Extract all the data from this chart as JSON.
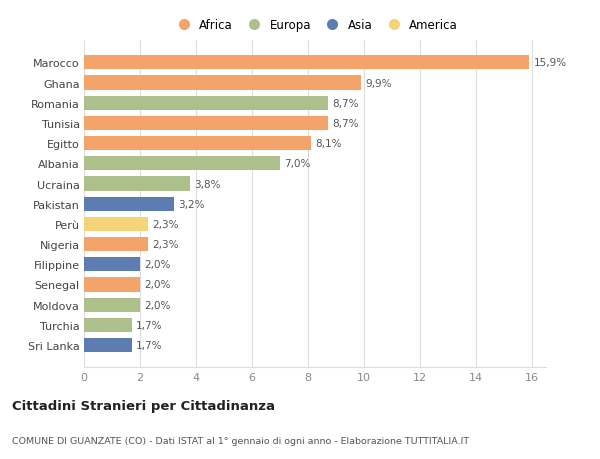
{
  "countries": [
    "Marocco",
    "Ghana",
    "Romania",
    "Tunisia",
    "Egitto",
    "Albania",
    "Ucraina",
    "Pakistan",
    "Perù",
    "Nigeria",
    "Filippine",
    "Senegal",
    "Moldova",
    "Turchia",
    "Sri Lanka"
  ],
  "values": [
    15.9,
    9.9,
    8.7,
    8.7,
    8.1,
    7.0,
    3.8,
    3.2,
    2.3,
    2.3,
    2.0,
    2.0,
    2.0,
    1.7,
    1.7
  ],
  "labels": [
    "15,9%",
    "9,9%",
    "8,7%",
    "8,7%",
    "8,1%",
    "7,0%",
    "3,8%",
    "3,2%",
    "2,3%",
    "2,3%",
    "2,0%",
    "2,0%",
    "2,0%",
    "1,7%",
    "1,7%"
  ],
  "continents": [
    "Africa",
    "Africa",
    "Europa",
    "Africa",
    "Africa",
    "Europa",
    "Europa",
    "Asia",
    "America",
    "Africa",
    "Asia",
    "Africa",
    "Europa",
    "Europa",
    "Asia"
  ],
  "colors": {
    "Africa": "#F4A46A",
    "Europa": "#ADBF8A",
    "Asia": "#5B7DB1",
    "America": "#F5D478"
  },
  "legend_order": [
    "Africa",
    "Europa",
    "Asia",
    "America"
  ],
  "xlim": [
    0,
    16.5
  ],
  "xticks": [
    0,
    2,
    4,
    6,
    8,
    10,
    12,
    14,
    16
  ],
  "title": "Cittadini Stranieri per Cittadinanza",
  "subtitle": "COMUNE DI GUANZATE (CO) - Dati ISTAT al 1° gennaio di ogni anno - Elaborazione TUTTITALIA.IT",
  "background_color": "#ffffff",
  "grid_color": "#dddddd",
  "bar_height": 0.7
}
